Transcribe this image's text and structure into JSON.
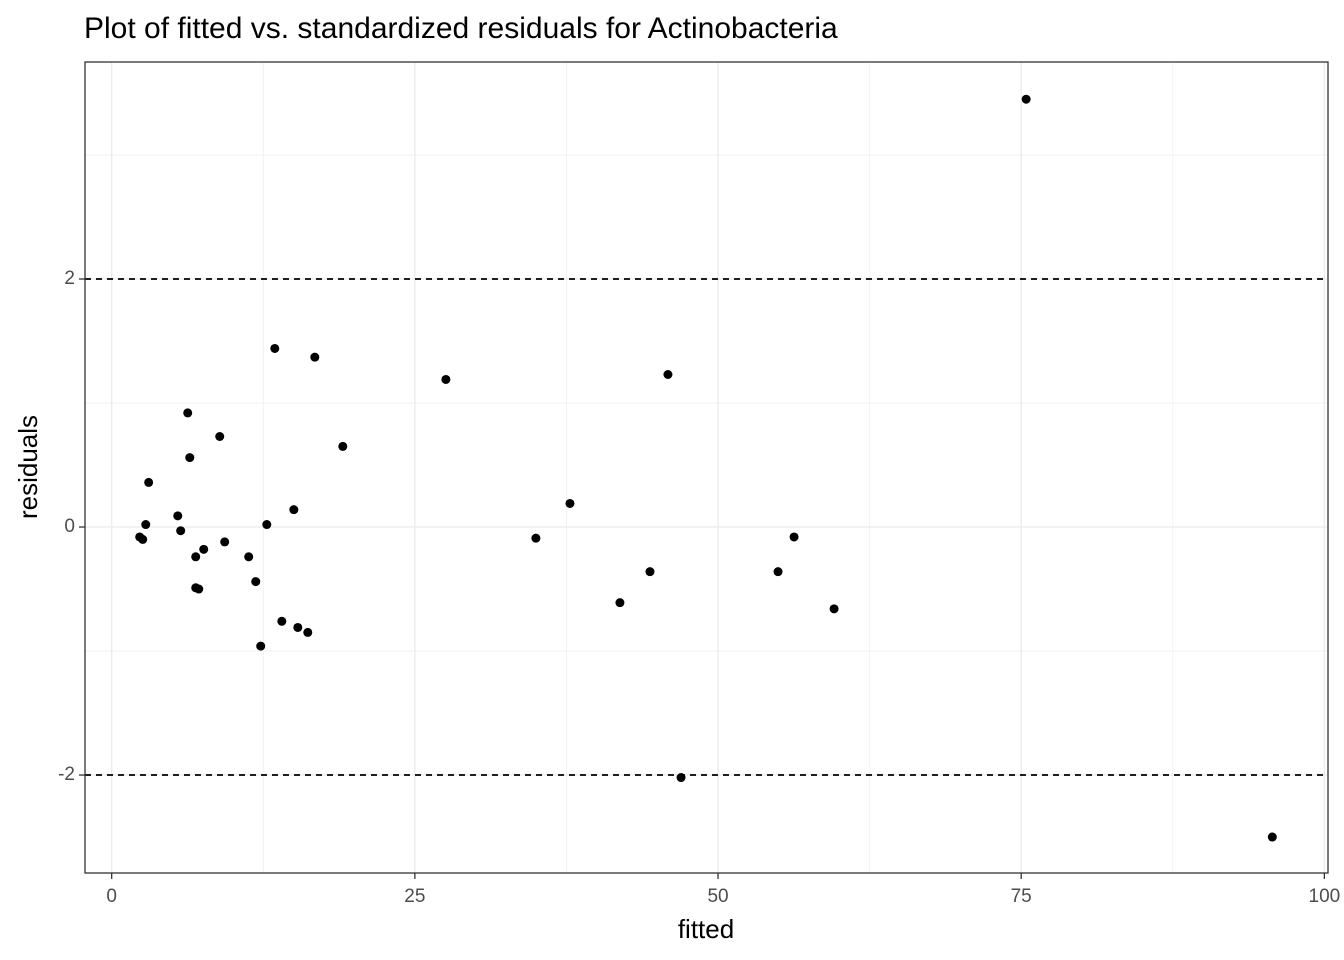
{
  "chart_data": {
    "type": "scatter",
    "title": "Plot of fitted vs. standardized residuals for Actinobacteria",
    "xlabel": "fitted",
    "ylabel": "residuals",
    "x": [
      2.31,
      2.56,
      2.81,
      3.05,
      5.45,
      5.69,
      6.27,
      6.44,
      6.93,
      6.93,
      7.18,
      7.59,
      8.91,
      9.32,
      11.3,
      11.88,
      12.29,
      12.79,
      13.45,
      14.03,
      15.02,
      15.35,
      16.17,
      16.75,
      19.06,
      27.56,
      34.98,
      37.79,
      41.91,
      44.39,
      45.87,
      46.95,
      54.95,
      56.27,
      59.57,
      75.41,
      95.71
    ],
    "values": [
      -0.08,
      -0.1,
      0.02,
      0.36,
      0.09,
      -0.03,
      0.92,
      0.56,
      -0.24,
      -0.49,
      -0.5,
      -0.18,
      0.73,
      -0.12,
      -0.24,
      -0.44,
      -0.96,
      0.02,
      1.44,
      -0.76,
      0.14,
      -0.81,
      -0.85,
      1.37,
      0.65,
      1.19,
      -0.09,
      0.19,
      -0.61,
      -0.36,
      1.23,
      -2.02,
      -0.36,
      -0.08,
      -0.66,
      3.45,
      -2.5
    ],
    "color": "#000000",
    "xlim": [
      -2.2,
      100.3
    ],
    "ylim": [
      -2.79,
      3.75
    ],
    "xticks": [
      0,
      25,
      50,
      75,
      100
    ],
    "yticks": [
      -2,
      0,
      2
    ],
    "hlines": [
      -2,
      2
    ],
    "grid": true
  }
}
